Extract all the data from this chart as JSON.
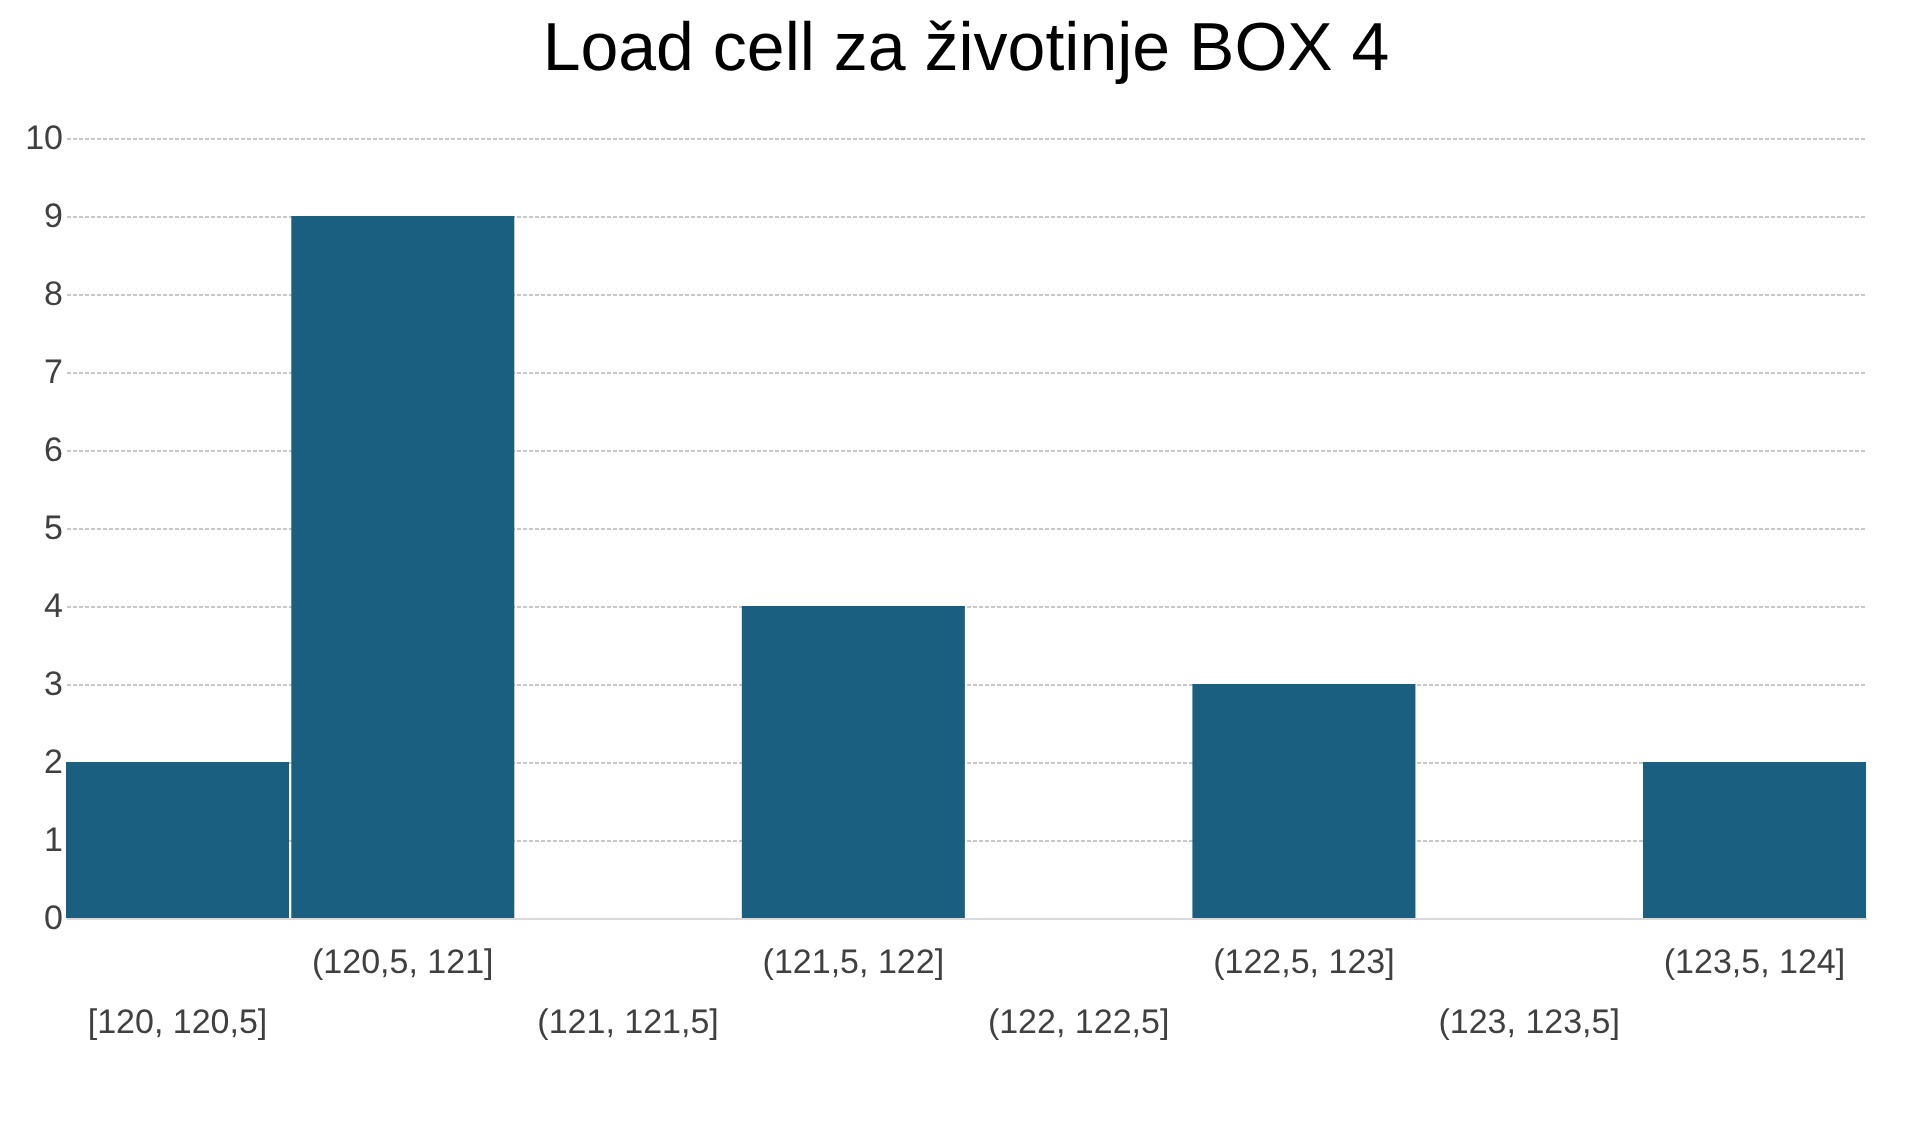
{
  "chart_data": {
    "type": "bar",
    "title": "Load cell za životinje BOX 4",
    "categories": [
      "[120, 120,5]",
      "(120,5, 121]",
      "(121, 121,5]",
      "(121,5, 122]",
      "(122, 122,5]",
      "(122,5, 123]",
      "(123, 123,5]",
      "(123,5, 124]"
    ],
    "values": [
      2,
      9,
      0,
      4,
      0,
      3,
      0,
      2
    ],
    "color": "#1a5e80",
    "ylim": [
      0,
      10
    ],
    "yticks": [
      0,
      1,
      2,
      3,
      4,
      5,
      6,
      7,
      8,
      9,
      10
    ],
    "grid": "y"
  }
}
